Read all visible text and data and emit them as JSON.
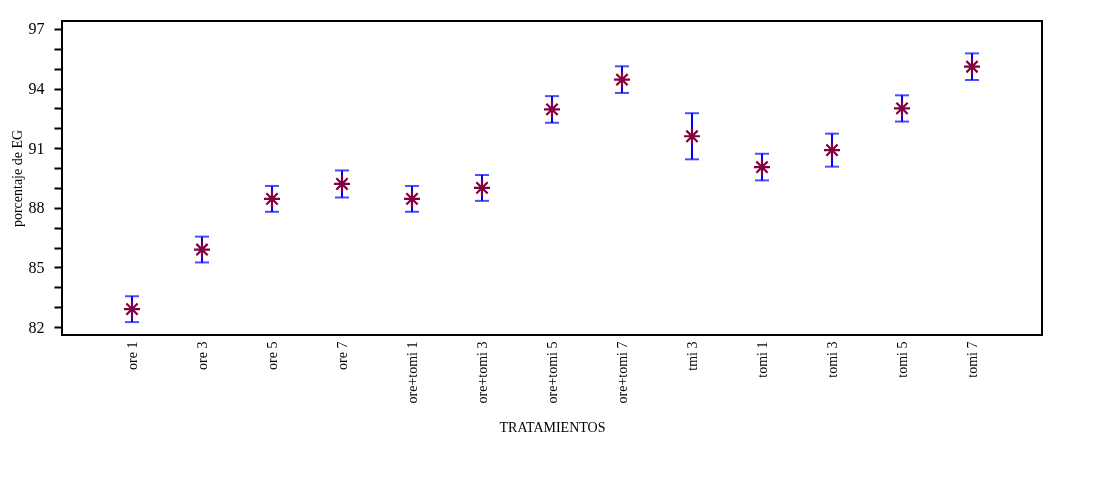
{
  "chart_data": {
    "type": "scatter",
    "xlabel": "TRATAMIENTOS",
    "ylabel": "porcentaje de EG",
    "categories": [
      "ore 1",
      "ore 3",
      "ore 5",
      "ore 7",
      "ore+tomi 1",
      "ore+tomi 3",
      "ore+tomi 5",
      "ore+tomi 7",
      "tmi 3",
      "tomi 1",
      "tomi 3",
      "tomi 5",
      "tomi 7"
    ],
    "series": [
      {
        "color": "#800040",
        "values": [
          82.9,
          85.9,
          88.45,
          89.2,
          88.45,
          89.0,
          92.95,
          94.45,
          91.6,
          90.05,
          90.9,
          93.0,
          95.1
        ],
        "errors": [
          0.65,
          0.65,
          0.65,
          0.68,
          0.65,
          0.65,
          0.67,
          0.67,
          1.16,
          0.67,
          0.83,
          0.66,
          0.67
        ]
      }
    ],
    "ylim": [
      81.6,
      97.4
    ],
    "yticks": [
      82,
      {
        "value": 83,
        "label": null
      },
      {
        "value": 84,
        "label": null
      },
      85,
      {
        "value": 86,
        "label": null
      },
      {
        "value": 87,
        "label": null
      },
      88,
      {
        "value": 89,
        "label": null
      },
      {
        "value": 90,
        "label": null
      },
      91,
      {
        "value": 92,
        "label": null
      },
      {
        "value": 93,
        "label": null
      },
      94,
      {
        "value": 95,
        "label": null
      },
      {
        "value": 96,
        "label": null
      },
      97
    ],
    "marker": "cross",
    "grid": false
  }
}
